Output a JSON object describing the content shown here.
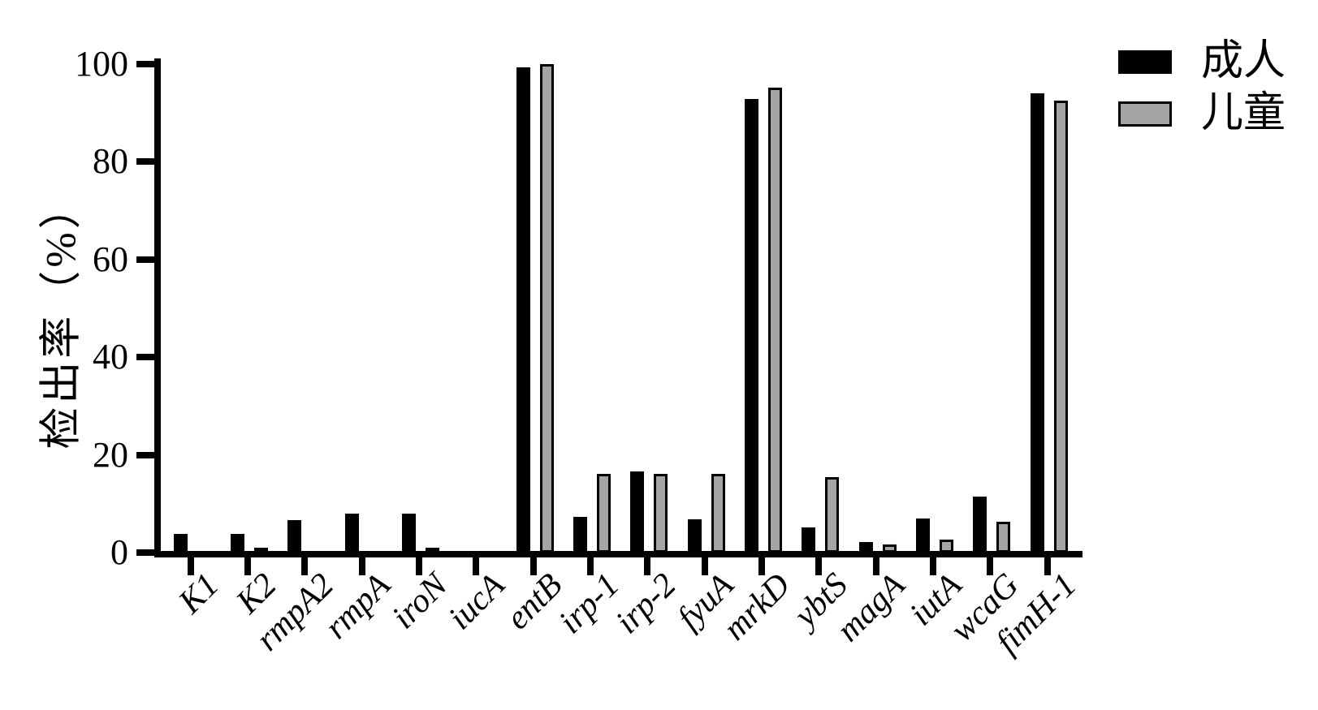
{
  "chart_data": {
    "type": "bar",
    "title": "",
    "xlabel": "",
    "ylabel": "检出率（%）",
    "ylim": [
      0,
      100
    ],
    "yticks": [
      0,
      20,
      40,
      60,
      80,
      100
    ],
    "grid": false,
    "legend_position": "top-right",
    "bar_style": "grouped, black outline, GraphPad-Prism look",
    "categories": [
      "K1",
      "K2",
      "rmpA2",
      "rmpA",
      "iroN",
      "iucA",
      "entB",
      "irp-1",
      "irp-2",
      "fyuA",
      "mrkD",
      "ybtS",
      "magA",
      "iutA",
      "wcaG",
      "fimH-1"
    ],
    "series": [
      {
        "name": "成人",
        "color": "#000000",
        "values": [
          3.8,
          3.8,
          6.6,
          7.9,
          7.9,
          0,
          99.3,
          7.3,
          16.6,
          6.8,
          92.8,
          5.1,
          2.2,
          6.9,
          11.5,
          94.0
        ]
      },
      {
        "name": "儿童",
        "color": "#A4A4A4",
        "values": [
          0,
          0.8,
          0,
          0,
          0.8,
          0,
          100,
          16.1,
          16.1,
          16.1,
          95.2,
          15.5,
          1.7,
          2.6,
          6.3,
          92.6
        ]
      }
    ]
  }
}
